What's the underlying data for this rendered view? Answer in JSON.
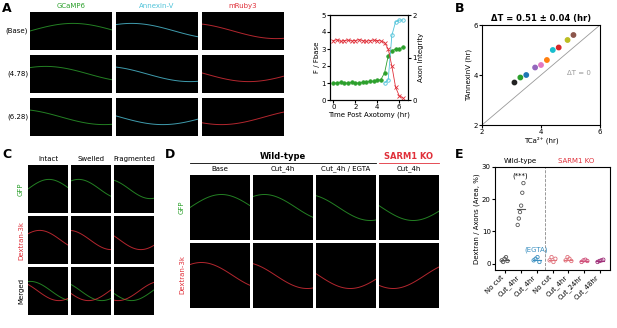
{
  "panel_labels": [
    "A",
    "B",
    "C",
    "D",
    "E"
  ],
  "panel_A_images": {
    "columns": [
      {
        "label": "GCaMP6",
        "color": "#2ca02c"
      },
      {
        "label": "Annexin-V",
        "color": "#4fc3d9"
      },
      {
        "label": "mRuby3",
        "color": "#e0303a"
      }
    ],
    "rows": [
      "(Base)",
      "(4.78)",
      "(6.28)"
    ]
  },
  "panel_C_images": {
    "columns": [
      "Intact",
      "Swelled",
      "Fragmented"
    ],
    "rows": [
      {
        "label": "GFP",
        "color": "#2ca02c"
      },
      {
        "label": "Dextran-3k",
        "color": "#e0303a"
      },
      {
        "label": "Merged",
        "color": "#000000"
      }
    ]
  },
  "panel_D_images": {
    "groups": [
      {
        "label": "Wild-type",
        "color": "#000000",
        "columns": [
          "Base",
          "Cut_4h",
          "Cut_4h / EGTA"
        ]
      },
      {
        "label": "SARM1 KO",
        "color": "#e0303a",
        "columns": [
          "Cut_4h"
        ]
      }
    ],
    "rows": [
      {
        "label": "GFP",
        "color": "#2ca02c"
      },
      {
        "label": "Dextran-3k",
        "color": "#e0303a"
      }
    ]
  },
  "chart_data": [
    {
      "type": "line",
      "x": [
        0,
        0.33,
        0.67,
        1,
        1.33,
        1.67,
        2,
        2.33,
        2.67,
        3,
        3.33,
        3.67,
        4,
        4.33,
        4.67,
        5,
        5.33,
        5.67,
        6,
        6.33
      ],
      "xlabel": "Time Post Axotomy (hr)",
      "ylabel": "F / Fbase",
      "y2label": "Axon Integrity",
      "xlim": [
        -0.3,
        6.8
      ],
      "xticks": [
        0,
        2,
        4,
        6
      ],
      "ylim": [
        0,
        5
      ],
      "yticks": [
        0,
        1,
        2,
        3,
        4,
        5
      ],
      "y2lim": [
        0,
        2
      ],
      "y2ticks": [
        0,
        1,
        2
      ],
      "series": [
        {
          "color": "#2ca02c",
          "marker": "circle",
          "line_style": "solid",
          "values": [
            1,
            1,
            1.05,
            1,
            1,
            1.05,
            1,
            1,
            1.05,
            1.05,
            1.1,
            1.1,
            1.15,
            1.2,
            1.6,
            2.6,
            2.9,
            3.0,
            3.0,
            3.1
          ]
        },
        {
          "color": "#4fc3d9",
          "marker": "open_circle",
          "line_style": "solid",
          "values": [
            null,
            null,
            null,
            null,
            null,
            null,
            null,
            null,
            null,
            null,
            null,
            null,
            null,
            null,
            1.0,
            1.2,
            3.8,
            4.6,
            4.7,
            4.7
          ]
        },
        {
          "color": "#e0303a",
          "marker": "x",
          "line_style": "solid",
          "axis": "y2",
          "values": [
            1.4,
            1.42,
            1.38,
            1.4,
            1.41,
            1.39,
            1.4,
            1.42,
            1.4,
            1.38,
            1.4,
            1.41,
            1.4,
            1.39,
            1.35,
            1.2,
            0.8,
            0.3,
            0.1,
            0.05
          ]
        }
      ]
    },
    {
      "type": "scatter",
      "title": "ΔT = 0.51 ± 0.04 (hr)",
      "xlabel": "TCa²⁺ (hr)",
      "ylabel": "TAnnexinV (hr)",
      "x": [
        3.1,
        3.3,
        3.5,
        3.8,
        4.0,
        4.2,
        4.4,
        4.6,
        4.9,
        5.1
      ],
      "values": [
        3.7,
        3.9,
        4.0,
        4.3,
        4.4,
        4.6,
        5.0,
        5.1,
        5.4,
        5.6
      ],
      "colors": [
        "#222222",
        "#2ca02c",
        "#1f77b4",
        "#9467bd",
        "#e377c2",
        "#ff7f0e",
        "#17becf",
        "#d62728",
        "#bcbd22",
        "#8c564b"
      ],
      "xlim": [
        2,
        6
      ],
      "xticks": [
        2,
        4,
        6
      ],
      "ylim": [
        2,
        6
      ],
      "yticks": [
        2,
        4,
        6
      ],
      "annotations": [
        {
          "text": "ΔT = 0",
          "color": "#999999"
        }
      ]
    },
    {
      "type": "strip",
      "ylabel": "Dextran / Axons (Area, %)",
      "ylim": [
        -2,
        30
      ],
      "yticks": [
        0,
        10,
        20,
        30
      ],
      "groups": [
        {
          "label": "Wild-type",
          "color": "#000000",
          "items": [
            {
              "category": "No cut",
              "color": "#555555",
              "values": [
                1,
                0.5,
                1.5,
                2,
                0.8
              ]
            },
            {
              "category": "Cut_4hr",
              "color": "#555555",
              "values": [
                12,
                14,
                16,
                18,
                22,
                25
              ],
              "annotation": "(***)",
              "annotation_color": "#000000"
            },
            {
              "category": "Cut_4hr",
              "color": "#3a8fc0",
              "values": [
                1,
                1.5,
                2,
                0.5
              ],
              "annotation": "(EGTA)",
              "annotation_color": "#3a8fc0"
            }
          ]
        },
        {
          "label": "SARM1 KO",
          "color": "#e0303a",
          "items": [
            {
              "category": "No cut",
              "color": "#e0707a",
              "values": [
                1,
                2,
                0.5,
                1.5
              ]
            },
            {
              "category": "Cut_4hr",
              "color": "#e0707a",
              "values": [
                1,
                2,
                1.5,
                0.8
              ]
            },
            {
              "category": "Cut_24hr",
              "color": "#d0507a",
              "values": [
                0.5,
                1,
                1.2,
                0.8
              ]
            },
            {
              "category": "Cut_48hr",
              "color": "#a0307a",
              "values": [
                0.5,
                0.8,
                1,
                1.2
              ]
            }
          ]
        }
      ]
    }
  ]
}
